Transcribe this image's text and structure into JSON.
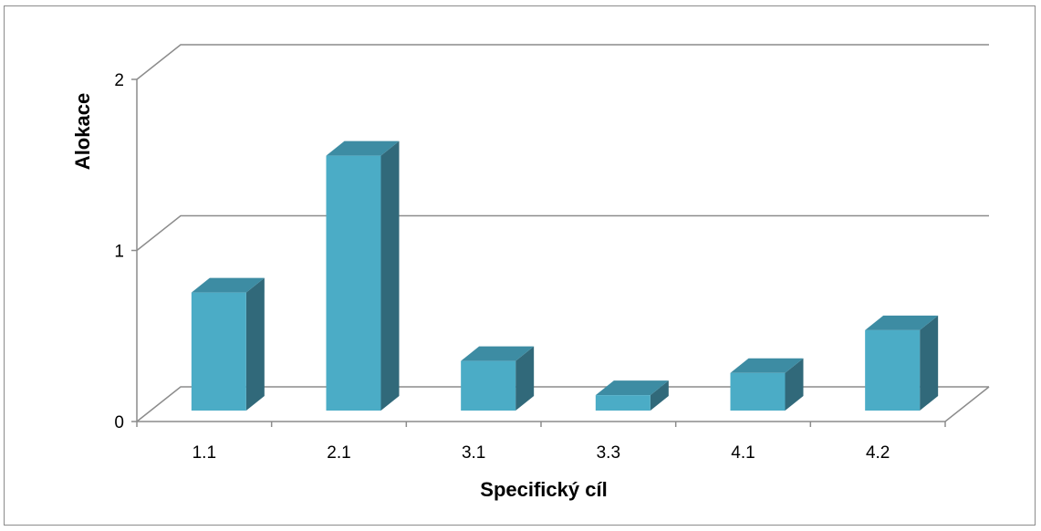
{
  "chart_data": {
    "type": "bar",
    "style": "3d-column",
    "title": "",
    "xlabel": "Specifický cíl",
    "ylabel": "Alokace",
    "categories": [
      "1.1",
      "2.1",
      "3.1",
      "3.3",
      "4.1",
      "4.2"
    ],
    "values": [
      0.69,
      1.49,
      0.29,
      0.09,
      0.22,
      0.47
    ],
    "ylim": [
      0,
      2
    ],
    "yticks": [
      "0",
      "1",
      "2"
    ],
    "grid": true,
    "legend": "none",
    "colors": {
      "bar_front": "#4bacc6",
      "bar_side": "#31697a",
      "bar_top": "#3d8ca3",
      "grid": "#8c8c8c"
    }
  }
}
